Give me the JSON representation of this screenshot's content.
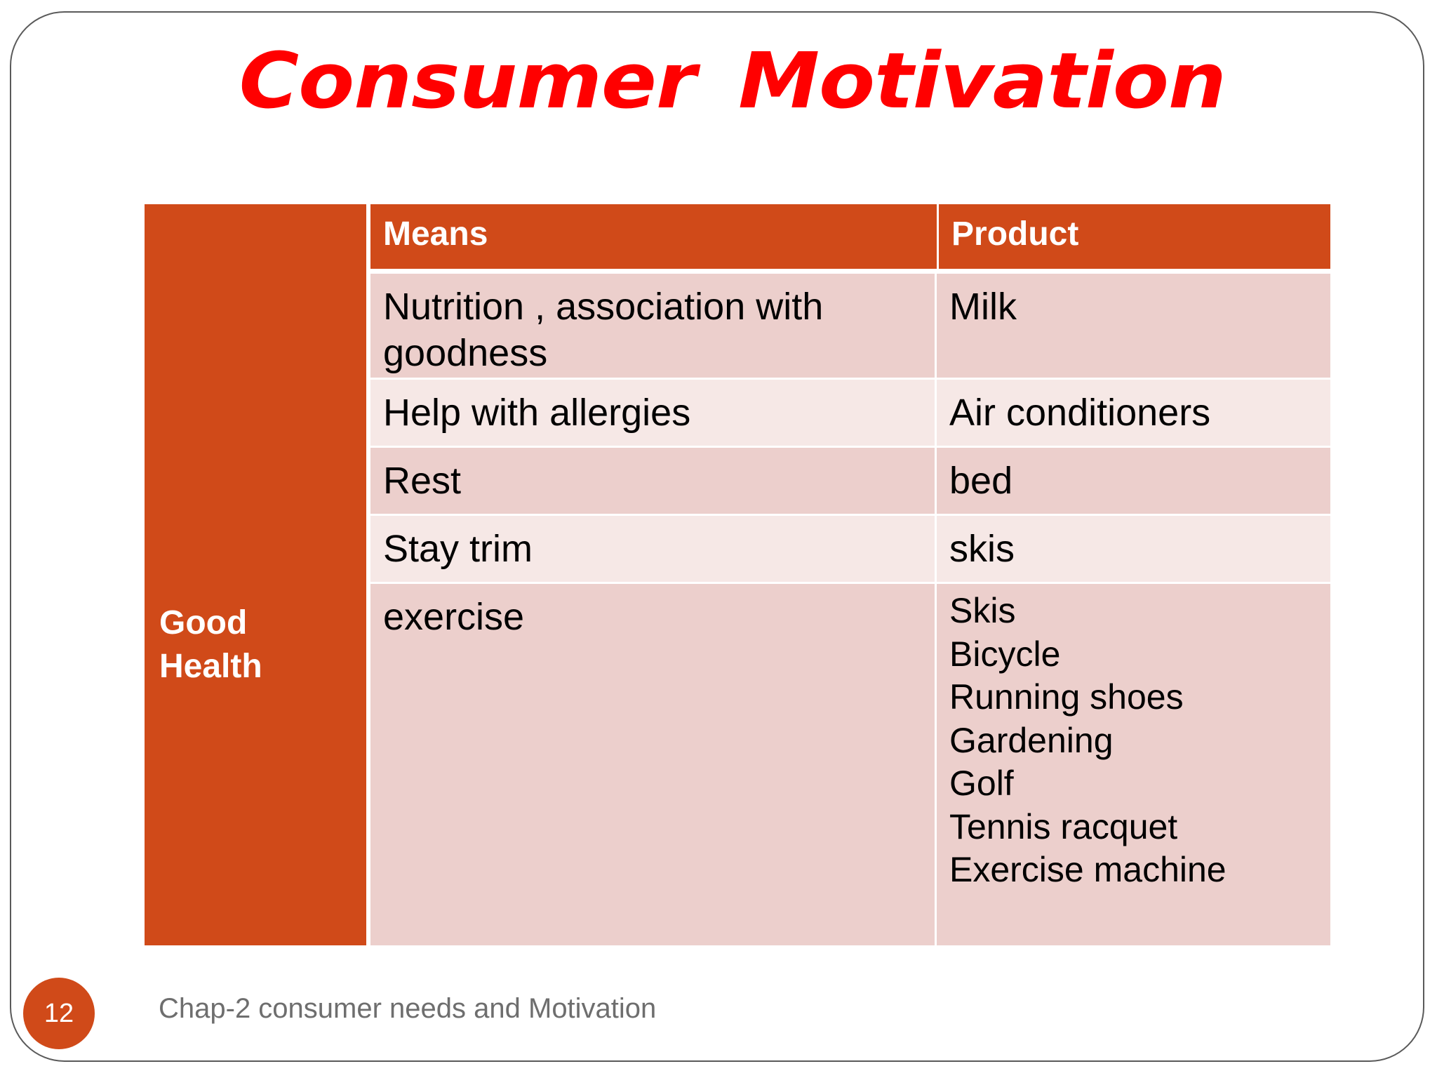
{
  "slide": {
    "title": "Consumer  Motivation",
    "page_number": "12",
    "footer": "Chap-2 consumer needs and Motivation"
  },
  "table": {
    "goal": "Good\nHealth",
    "headers": {
      "means": "Means",
      "product": "Product"
    },
    "rows": [
      {
        "means": "Nutrition , association with goodness",
        "product": "Milk"
      },
      {
        "means": "Help with allergies",
        "product": "Air conditioners"
      },
      {
        "means": "Rest",
        "product": "bed"
      },
      {
        "means": "Stay trim",
        "product": "skis"
      },
      {
        "means": "exercise",
        "products": [
          "Skis",
          "Bicycle",
          "Running shoes",
          "Gardening",
          "Golf",
          "Tennis racquet",
          "Exercise machine"
        ]
      }
    ]
  },
  "colors": {
    "title": "#ff0000",
    "accent": "#d04a19",
    "row_dark": "#eccfcc",
    "row_light": "#f6e8e6",
    "footer_text": "#6e6e6e"
  }
}
